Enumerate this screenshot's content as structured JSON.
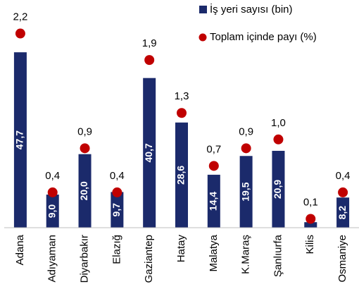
{
  "chart_data": {
    "type": "bar_dot",
    "categories": [
      "Adana",
      "Adıyaman",
      "Diyarbakır",
      "Elazığ",
      "Gaziantep",
      "Hatay",
      "Malatya",
      "K.Maraş",
      "Şanlıurfa",
      "Kilis",
      "Osmaniye"
    ],
    "series": [
      {
        "name": "İş yeri sayısı (bin)",
        "color": "#1b2a6b",
        "axis": "y",
        "values": [
          47.7,
          9.0,
          20.0,
          9.7,
          40.7,
          28.6,
          14.4,
          19.5,
          20.9,
          1.5,
          8.2
        ],
        "value_labels": [
          "47,7",
          "9,0",
          "20,0",
          "9,7",
          "40,7",
          "28,6",
          "14,4",
          "19,5",
          "20,9",
          null,
          "8,2"
        ]
      },
      {
        "name": "Toplam içinde payı (%)",
        "color": "#c00000",
        "axis": "y2",
        "values": [
          2.2,
          0.4,
          0.9,
          0.4,
          1.9,
          1.3,
          0.7,
          0.9,
          1.0,
          0.1,
          0.4
        ],
        "value_labels": [
          "2,2",
          "0,4",
          "0,9",
          "0,4",
          "1,9",
          "1,3",
          "0,7",
          "0,9",
          "1,0",
          "0,1",
          "0,4"
        ]
      }
    ],
    "ylim": [
      0,
      60
    ],
    "y2lim": [
      0,
      2.5
    ]
  }
}
